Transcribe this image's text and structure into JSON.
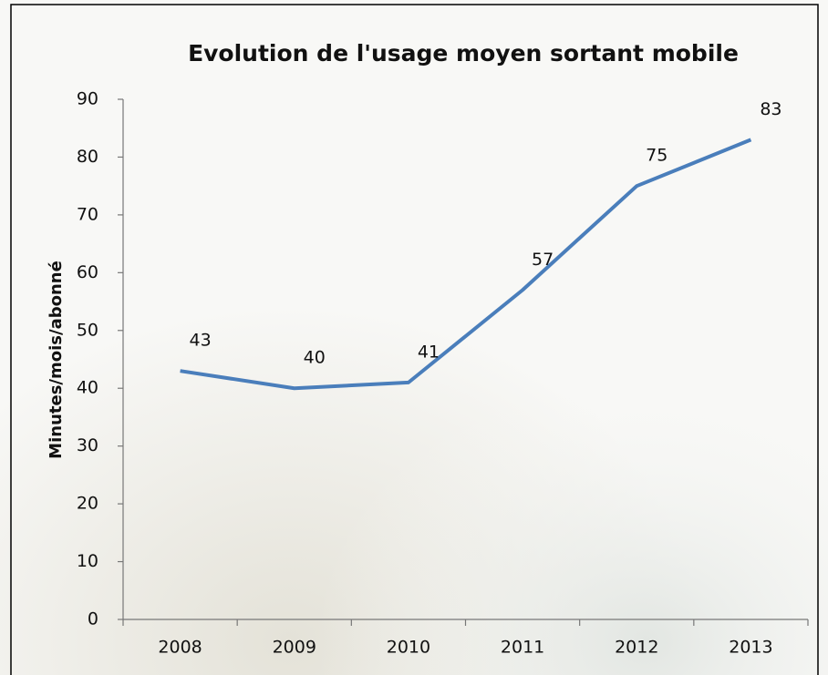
{
  "chart_data": {
    "type": "line",
    "title": "Evolution de l'usage moyen sortant mobile",
    "y_label": "Minutes/mois/abonné",
    "categories": [
      "2008",
      "2009",
      "2010",
      "2011",
      "2012",
      "2013"
    ],
    "values": [
      43,
      40,
      41,
      57,
      75,
      83
    ],
    "color": "#4a7ebb",
    "ylim": [
      0,
      90
    ],
    "yticks": [
      0,
      10,
      20,
      30,
      40,
      50,
      60,
      70,
      80,
      90
    ],
    "grid": false
  }
}
